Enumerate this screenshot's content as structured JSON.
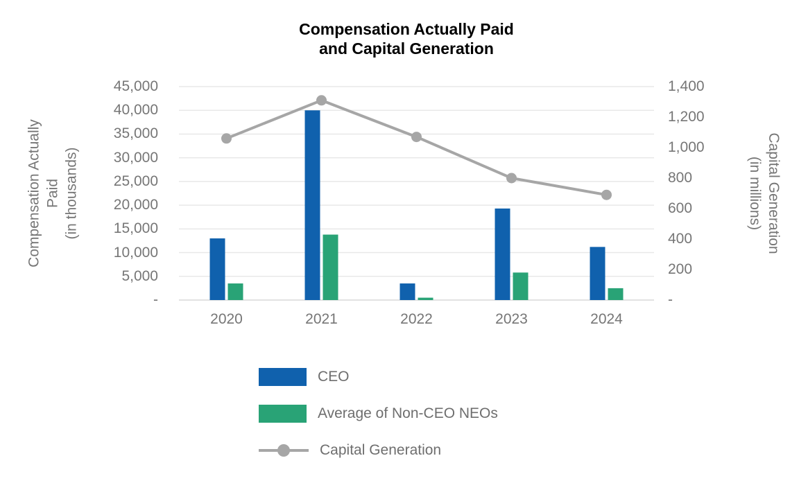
{
  "chart_data": {
    "type": "combo_bar_line",
    "title": "Compensation Actually Paid and Capital Generation",
    "title_lines": [
      "Compensation Actually Paid",
      "and Capital Generation"
    ],
    "categories": [
      "2020",
      "2021",
      "2022",
      "2023",
      "2024"
    ],
    "bar_series": [
      {
        "name": "CEO",
        "axis": "left",
        "color": "#1061AD",
        "values": [
          13000,
          40000,
          3500,
          19300,
          11200
        ]
      },
      {
        "name": "Average of Non-CEO NEOs",
        "axis": "left",
        "color": "#29A376",
        "values": [
          3500,
          13800,
          500,
          5800,
          2500
        ]
      }
    ],
    "line_series": [
      {
        "name": "Capital Generation",
        "axis": "right",
        "color": "#A6A6A6",
        "values": [
          1060,
          1310,
          1070,
          800,
          690
        ]
      }
    ],
    "y_left": {
      "title": "Compensation Actually Paid (in thousands)",
      "title_lines": [
        "Compensation Actually",
        "Paid",
        "(in thousands)"
      ],
      "min": 0,
      "max": 45000,
      "tick_step": 5000,
      "tick_labels": [
        "45,000",
        "40,000",
        "35,000",
        "30,000",
        "25,000",
        "20,000",
        "15,000",
        "10,000",
        "5,000",
        "-"
      ]
    },
    "y_right": {
      "title": "Capital Generation (in millions)",
      "title_lines": [
        "Capital Generation",
        "(in millions)"
      ],
      "min": 0,
      "max": 1400,
      "tick_step": 200,
      "tick_labels": [
        "1,400",
        "1,200",
        "1,000",
        "800",
        "600",
        "400",
        "200",
        "-"
      ]
    },
    "grid": true,
    "legend_position": "bottom-left-stacked",
    "colors": {
      "grid": "#E8E8E8",
      "axis_line": "#D9D9D9",
      "axis_text": "#767676",
      "legend_text": "#6E6E6E",
      "title_text": "#000000"
    }
  }
}
